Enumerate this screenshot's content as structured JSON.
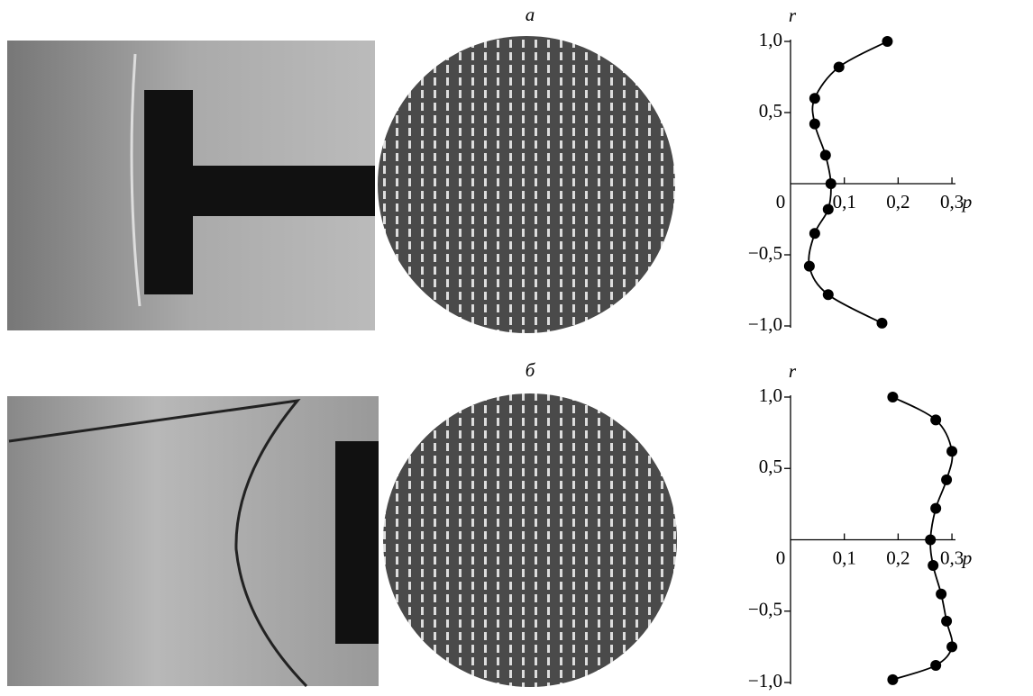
{
  "chart_data": [
    {
      "type": "line",
      "title": "а",
      "xlabel": "p",
      "ylabel": "r",
      "x": [
        0.18,
        0.09,
        0.045,
        0.045,
        0.065,
        0.075,
        0.07,
        0.045,
        0.035,
        0.07,
        0.17
      ],
      "series": [
        {
          "color": "#000000",
          "values": [
            1.0,
            0.82,
            0.6,
            0.42,
            0.2,
            0.0,
            -0.18,
            -0.35,
            -0.58,
            -0.78,
            -0.98
          ]
        }
      ],
      "xlim": [
        0,
        0.32
      ],
      "ylim": [
        -1.0,
        1.0
      ],
      "xticks": [
        0,
        {
          "value": 0.1,
          "label": "0,1"
        },
        {
          "value": 0.2,
          "label": "0,2"
        },
        {
          "value": 0.3,
          "label": "0,3"
        }
      ],
      "yticks": [
        {
          "value": 1.0,
          "label": "1,0"
        },
        {
          "value": 0.5,
          "label": "0,5"
        },
        {
          "value": -0.5,
          "label": "−0,5"
        },
        {
          "value": -1.0,
          "label": "−1,0"
        }
      ]
    },
    {
      "type": "line",
      "title": "б",
      "xlabel": "p",
      "ylabel": "r",
      "x": [
        0.19,
        0.27,
        0.3,
        0.29,
        0.27,
        0.26,
        0.265,
        0.28,
        0.29,
        0.3,
        0.27,
        0.19
      ],
      "series": [
        {
          "color": "#000000",
          "values": [
            1.0,
            0.84,
            0.62,
            0.42,
            0.22,
            0.0,
            -0.18,
            -0.38,
            -0.57,
            -0.75,
            -0.88,
            -0.98
          ]
        }
      ],
      "xlim": [
        0,
        0.32
      ],
      "ylim": [
        -1.0,
        1.0
      ],
      "xticks": [
        0,
        {
          "value": 0.1,
          "label": "0,1"
        },
        {
          "value": 0.2,
          "label": "0,2"
        },
        {
          "value": 0.3,
          "label": "0,3"
        }
      ],
      "yticks": [
        {
          "value": 1.0,
          "label": "1,0"
        },
        {
          "value": 0.5,
          "label": "0,5"
        },
        {
          "value": -0.5,
          "label": "−0,5"
        },
        {
          "value": -1.0,
          "label": "−1,0"
        }
      ]
    }
  ]
}
